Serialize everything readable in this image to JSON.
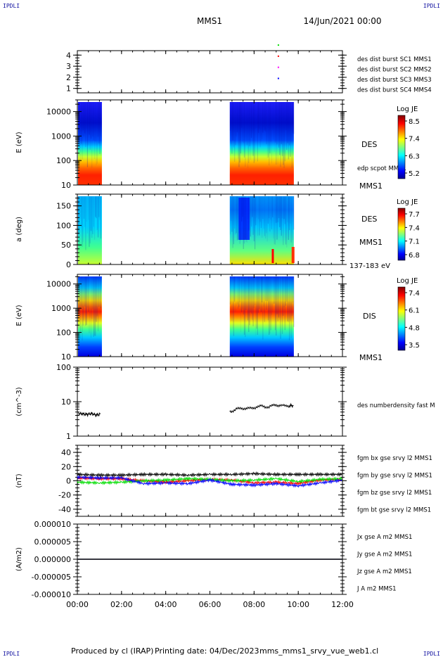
{
  "header": {
    "corner_tl": "IPDLI",
    "corner_tr": "IPDLI",
    "corner_bl": "IPDLI",
    "corner_br": "IPDLI",
    "spacecraft": "MMS1",
    "date": "14/Jun/2021 00:00"
  },
  "footer": {
    "produced_by": "Produced by cl (IRAP)",
    "printing_date": "Printing date: 04/Dec/2023",
    "filename": "mms_mms1_srvy_vue_web1.cl"
  },
  "x_axis": {
    "ticks": [
      "00:00",
      "02:00",
      "04:00",
      "06:00",
      "08:00",
      "10:00",
      "12:00"
    ],
    "hours": [
      0,
      2,
      4,
      6,
      8,
      10,
      12
    ]
  },
  "colors": {
    "blue": "#0000ff",
    "magenta": "#ff00ff",
    "red": "#ff0000",
    "green": "#00dd00",
    "black": "#000000"
  },
  "chart_data": [
    {
      "type": "scatter",
      "panel": "burst",
      "yticks": [
        "1",
        "2",
        "3",
        "4"
      ],
      "ylim": [
        0.6,
        4.4
      ],
      "series": [
        {
          "name": "des dist burst SC1 MMS1",
          "color": "#0000ff",
          "y": 1,
          "x": [
            9.1
          ]
        },
        {
          "name": "des dist burst SC2 MMS2",
          "color": "#ff00ff",
          "y": 2,
          "x": [
            9.1
          ]
        },
        {
          "name": "des dist burst SC3 MMS3",
          "color": "#ff0000",
          "y": 3,
          "x": [
            9.1
          ]
        },
        {
          "name": "des dist burst SC4 MMS4",
          "color": "#00dd00",
          "y": 4,
          "x": [
            9.1
          ]
        }
      ]
    },
    {
      "type": "heatmap",
      "panel": "des_energy",
      "ylabel": "E (eV)",
      "yscale": "log",
      "ylim": [
        10,
        30000
      ],
      "yticks": [
        "10",
        "100",
        "1000",
        "10000"
      ],
      "data_intervals": [
        [
          0.0,
          1.08
        ],
        [
          6.9,
          9.8
        ]
      ],
      "label": "DES",
      "label2": "edp scpot MMS1",
      "label3": "MMS1",
      "colorbar": {
        "title": "Log JE",
        "ticks": [
          "8.5",
          "7.4",
          "6.3",
          "5.2"
        ]
      }
    },
    {
      "type": "heatmap",
      "panel": "des_pitch",
      "ylabel": "a (deg)",
      "ylim": [
        0,
        180
      ],
      "yticks": [
        "0",
        "50",
        "100",
        "150"
      ],
      "data_intervals": [
        [
          0.0,
          1.08
        ],
        [
          6.9,
          9.8
        ]
      ],
      "label": "DES",
      "label2": "MMS1",
      "label3": "137-183 eV",
      "colorbar": {
        "title": "Log JE",
        "ticks": [
          "7.7",
          "7.4",
          "7.1",
          "6.8"
        ]
      }
    },
    {
      "type": "heatmap",
      "panel": "dis_energy",
      "ylabel": "E (eV)",
      "yscale": "log",
      "ylim": [
        10,
        25000
      ],
      "yticks": [
        "10",
        "100",
        "1000",
        "10000"
      ],
      "data_intervals": [
        [
          0.0,
          1.08
        ],
        [
          6.9,
          9.8
        ]
      ],
      "label": "DIS",
      "label2": "MMS1",
      "colorbar": {
        "title": "Log JE",
        "ticks": [
          "7.4",
          "6.1",
          "4.8",
          "3.5"
        ]
      }
    },
    {
      "type": "line",
      "panel": "density",
      "ylabel": "(cm^-3)",
      "yscale": "log",
      "ylim": [
        1,
        100
      ],
      "yticks": [
        "1",
        "10",
        "100"
      ],
      "series": [
        {
          "name": "des numberdensity fast M",
          "color": "#000000",
          "segments": [
            {
              "x": [
                0.05,
                0.25,
                0.45,
                0.65,
                0.85,
                1.05
              ],
              "y": [
                4.6,
                4.4,
                4.3,
                4.5,
                4.1,
                4.4
              ]
            },
            {
              "x": [
                6.9,
                7.2,
                7.5,
                7.8,
                8.1,
                8.4,
                8.7,
                9.0,
                9.3,
                9.6,
                9.8
              ],
              "y": [
                5.2,
                6.0,
                6.5,
                6.3,
                7.0,
                7.4,
                7.0,
                8.2,
                7.5,
                7.8,
                7.6
              ]
            }
          ]
        }
      ]
    },
    {
      "type": "line",
      "panel": "fgm",
      "ylabel": "(nT)",
      "ylim": [
        -50,
        50
      ],
      "yticks": [
        "-40",
        "-20",
        "0",
        "20",
        "40"
      ],
      "series": [
        {
          "name": "fgm bx gse srvy l2 MMS1",
          "color": "#ff0000",
          "x": [
            0,
            1,
            2,
            3,
            4,
            5,
            6,
            7,
            8,
            9,
            10,
            11,
            12
          ],
          "y": [
            4,
            3,
            3,
            0,
            -2,
            0,
            2,
            1,
            -3,
            -2,
            -4,
            1,
            2
          ]
        },
        {
          "name": "fgm by gse srvy l2 MMS1",
          "color": "#00dd00",
          "x": [
            0,
            1,
            2,
            3,
            4,
            5,
            6,
            7,
            8,
            9,
            10,
            11,
            12
          ],
          "y": [
            -2,
            -3,
            -2,
            0,
            1,
            3,
            2,
            0,
            1,
            3,
            -1,
            2,
            3
          ]
        },
        {
          "name": "fgm bz gse srvy l2 MMS1",
          "color": "#0000ff",
          "x": [
            0,
            1,
            2,
            3,
            4,
            5,
            6,
            7,
            8,
            9,
            10,
            11,
            12
          ],
          "y": [
            5,
            4,
            4,
            -4,
            -3,
            -4,
            1,
            -5,
            -6,
            -4,
            -7,
            -3,
            1
          ]
        },
        {
          "name": "fgm bt gse srvy l2 MMS1",
          "color": "#000000",
          "x": [
            0,
            1,
            2,
            3,
            4,
            5,
            6,
            7,
            8,
            9,
            10,
            11,
            12
          ],
          "y": [
            9,
            8,
            8,
            9,
            9,
            8,
            9,
            9,
            10,
            9,
            9,
            9,
            9
          ]
        }
      ]
    },
    {
      "type": "line",
      "panel": "current",
      "ylabel": "(A/m2)",
      "ylim": [
        -1e-05,
        1e-05
      ],
      "yticks": [
        "0.000010",
        "0.000005",
        "0.000000",
        "-0.000005",
        "-0.000010"
      ],
      "series": [
        {
          "name": "Jx gse A m2 MMS1",
          "color": "#ff0000",
          "x": [
            0,
            12
          ],
          "y": [
            0,
            0
          ]
        },
        {
          "name": "Jy gse A m2 MMS1",
          "color": "#00dd00",
          "x": [
            0,
            12
          ],
          "y": [
            0,
            0
          ]
        },
        {
          "name": "Jz gse A m2 MMS1",
          "color": "#0000ff",
          "x": [
            0,
            12
          ],
          "y": [
            0,
            0
          ]
        },
        {
          "name": "J A m2 MMS1",
          "color": "#000000",
          "x": [
            0,
            12
          ],
          "y": [
            0,
            0
          ]
        }
      ]
    }
  ]
}
